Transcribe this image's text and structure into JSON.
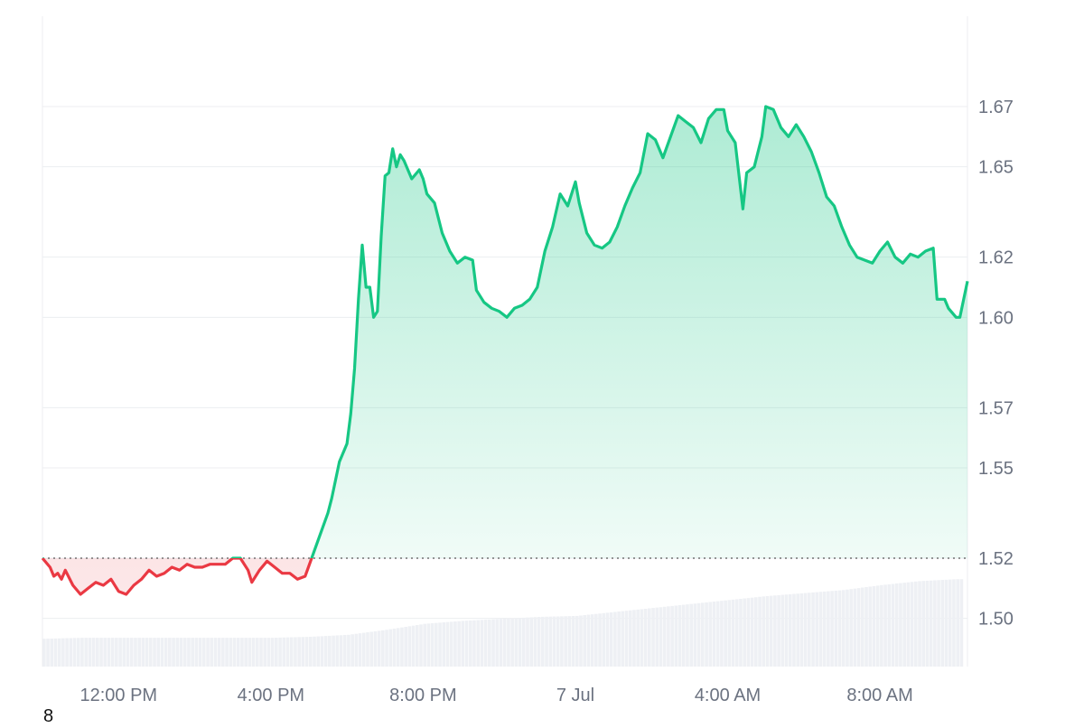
{
  "page_number": "8",
  "chart_data": {
    "type": "area",
    "title": "",
    "xlabel": "",
    "ylabel": "",
    "baseline": 1.52,
    "ylim": [
      1.484,
      1.7
    ],
    "y_ticks": [
      "1.50",
      "1.52",
      "1.55",
      "1.57",
      "1.60",
      "1.62",
      "1.65",
      "1.67"
    ],
    "y_tick_values": [
      1.5,
      1.52,
      1.55,
      1.57,
      1.6,
      1.62,
      1.65,
      1.67
    ],
    "x_ticks": [
      "12:00 PM",
      "4:00 PM",
      "8:00 PM",
      "7 Jul",
      "4:00 AM",
      "8:00 AM"
    ],
    "x_tick_hours": [
      12,
      16,
      20,
      24,
      28,
      32
    ],
    "x_range_hours": [
      10.0,
      34.3
    ],
    "colors": {
      "up": "#16c784",
      "down": "#ea3943",
      "grid": "#eceef1",
      "volume": "#eef0f4",
      "axis_text": "#6b7280"
    },
    "price": [
      [
        10.0,
        1.52
      ],
      [
        10.2,
        1.517
      ],
      [
        10.3,
        1.514
      ],
      [
        10.4,
        1.515
      ],
      [
        10.5,
        1.513
      ],
      [
        10.6,
        1.516
      ],
      [
        10.8,
        1.511
      ],
      [
        11.0,
        1.508
      ],
      [
        11.2,
        1.51
      ],
      [
        11.4,
        1.512
      ],
      [
        11.6,
        1.511
      ],
      [
        11.8,
        1.513
      ],
      [
        12.0,
        1.509
      ],
      [
        12.2,
        1.508
      ],
      [
        12.4,
        1.511
      ],
      [
        12.6,
        1.513
      ],
      [
        12.8,
        1.516
      ],
      [
        13.0,
        1.514
      ],
      [
        13.2,
        1.515
      ],
      [
        13.4,
        1.517
      ],
      [
        13.6,
        1.516
      ],
      [
        13.8,
        1.518
      ],
      [
        14.0,
        1.517
      ],
      [
        14.2,
        1.517
      ],
      [
        14.4,
        1.518
      ],
      [
        14.6,
        1.518
      ],
      [
        14.8,
        1.518
      ],
      [
        15.0,
        1.52
      ],
      [
        15.2,
        1.52
      ],
      [
        15.4,
        1.516
      ],
      [
        15.5,
        1.512
      ],
      [
        15.7,
        1.516
      ],
      [
        15.9,
        1.519
      ],
      [
        16.1,
        1.517
      ],
      [
        16.3,
        1.515
      ],
      [
        16.5,
        1.515
      ],
      [
        16.7,
        1.513
      ],
      [
        16.9,
        1.514
      ],
      [
        17.1,
        1.521
      ],
      [
        17.3,
        1.528
      ],
      [
        17.5,
        1.535
      ],
      [
        17.6,
        1.54
      ],
      [
        17.8,
        1.552
      ],
      [
        18.0,
        1.558
      ],
      [
        18.1,
        1.568
      ],
      [
        18.2,
        1.583
      ],
      [
        18.3,
        1.606
      ],
      [
        18.4,
        1.624
      ],
      [
        18.5,
        1.61
      ],
      [
        18.6,
        1.61
      ],
      [
        18.7,
        1.6
      ],
      [
        18.8,
        1.602
      ],
      [
        18.9,
        1.627
      ],
      [
        19.0,
        1.647
      ],
      [
        19.1,
        1.648
      ],
      [
        19.2,
        1.656
      ],
      [
        19.3,
        1.65
      ],
      [
        19.4,
        1.654
      ],
      [
        19.5,
        1.652
      ],
      [
        19.7,
        1.646
      ],
      [
        19.9,
        1.649
      ],
      [
        20.0,
        1.646
      ],
      [
        20.1,
        1.641
      ],
      [
        20.3,
        1.638
      ],
      [
        20.5,
        1.628
      ],
      [
        20.7,
        1.622
      ],
      [
        20.9,
        1.618
      ],
      [
        21.1,
        1.62
      ],
      [
        21.3,
        1.619
      ],
      [
        21.4,
        1.609
      ],
      [
        21.6,
        1.605
      ],
      [
        21.8,
        1.603
      ],
      [
        22.0,
        1.602
      ],
      [
        22.2,
        1.6
      ],
      [
        22.4,
        1.603
      ],
      [
        22.6,
        1.604
      ],
      [
        22.8,
        1.606
      ],
      [
        23.0,
        1.61
      ],
      [
        23.2,
        1.622
      ],
      [
        23.4,
        1.63
      ],
      [
        23.6,
        1.641
      ],
      [
        23.8,
        1.637
      ],
      [
        24.0,
        1.645
      ],
      [
        24.1,
        1.638
      ],
      [
        24.3,
        1.628
      ],
      [
        24.5,
        1.624
      ],
      [
        24.7,
        1.623
      ],
      [
        24.9,
        1.625
      ],
      [
        25.1,
        1.63
      ],
      [
        25.3,
        1.637
      ],
      [
        25.5,
        1.643
      ],
      [
        25.7,
        1.648
      ],
      [
        25.9,
        1.661
      ],
      [
        26.1,
        1.659
      ],
      [
        26.3,
        1.653
      ],
      [
        26.5,
        1.66
      ],
      [
        26.7,
        1.667
      ],
      [
        26.9,
        1.665
      ],
      [
        27.1,
        1.663
      ],
      [
        27.3,
        1.658
      ],
      [
        27.5,
        1.666
      ],
      [
        27.7,
        1.669
      ],
      [
        27.9,
        1.669
      ],
      [
        28.0,
        1.662
      ],
      [
        28.2,
        1.658
      ],
      [
        28.4,
        1.636
      ],
      [
        28.5,
        1.648
      ],
      [
        28.7,
        1.65
      ],
      [
        28.9,
        1.66
      ],
      [
        29.0,
        1.67
      ],
      [
        29.2,
        1.669
      ],
      [
        29.4,
        1.663
      ],
      [
        29.6,
        1.66
      ],
      [
        29.8,
        1.664
      ],
      [
        30.0,
        1.66
      ],
      [
        30.2,
        1.655
      ],
      [
        30.4,
        1.648
      ],
      [
        30.6,
        1.64
      ],
      [
        30.8,
        1.637
      ],
      [
        31.0,
        1.63
      ],
      [
        31.2,
        1.624
      ],
      [
        31.4,
        1.62
      ],
      [
        31.6,
        1.619
      ],
      [
        31.8,
        1.618
      ],
      [
        32.0,
        1.622
      ],
      [
        32.2,
        1.625
      ],
      [
        32.4,
        1.62
      ],
      [
        32.6,
        1.618
      ],
      [
        32.8,
        1.621
      ],
      [
        33.0,
        1.62
      ],
      [
        33.2,
        1.622
      ],
      [
        33.4,
        1.623
      ],
      [
        33.5,
        1.606
      ],
      [
        33.7,
        1.606
      ],
      [
        33.8,
        1.603
      ],
      [
        34.0,
        1.6
      ],
      [
        34.1,
        1.6
      ],
      [
        34.3,
        1.612
      ]
    ],
    "volume_fraction": [
      [
        10.0,
        0.28
      ],
      [
        11.0,
        0.29
      ],
      [
        12.0,
        0.29
      ],
      [
        13.0,
        0.29
      ],
      [
        14.0,
        0.29
      ],
      [
        15.0,
        0.29
      ],
      [
        16.0,
        0.29
      ],
      [
        17.0,
        0.3
      ],
      [
        18.0,
        0.32
      ],
      [
        19.0,
        0.37
      ],
      [
        20.0,
        0.43
      ],
      [
        21.0,
        0.46
      ],
      [
        22.0,
        0.48
      ],
      [
        23.0,
        0.5
      ],
      [
        24.0,
        0.51
      ],
      [
        25.0,
        0.55
      ],
      [
        26.0,
        0.59
      ],
      [
        27.0,
        0.63
      ],
      [
        28.0,
        0.67
      ],
      [
        29.0,
        0.71
      ],
      [
        30.0,
        0.74
      ],
      [
        31.0,
        0.77
      ],
      [
        32.0,
        0.82
      ],
      [
        33.0,
        0.86
      ],
      [
        34.0,
        0.88
      ]
    ]
  }
}
